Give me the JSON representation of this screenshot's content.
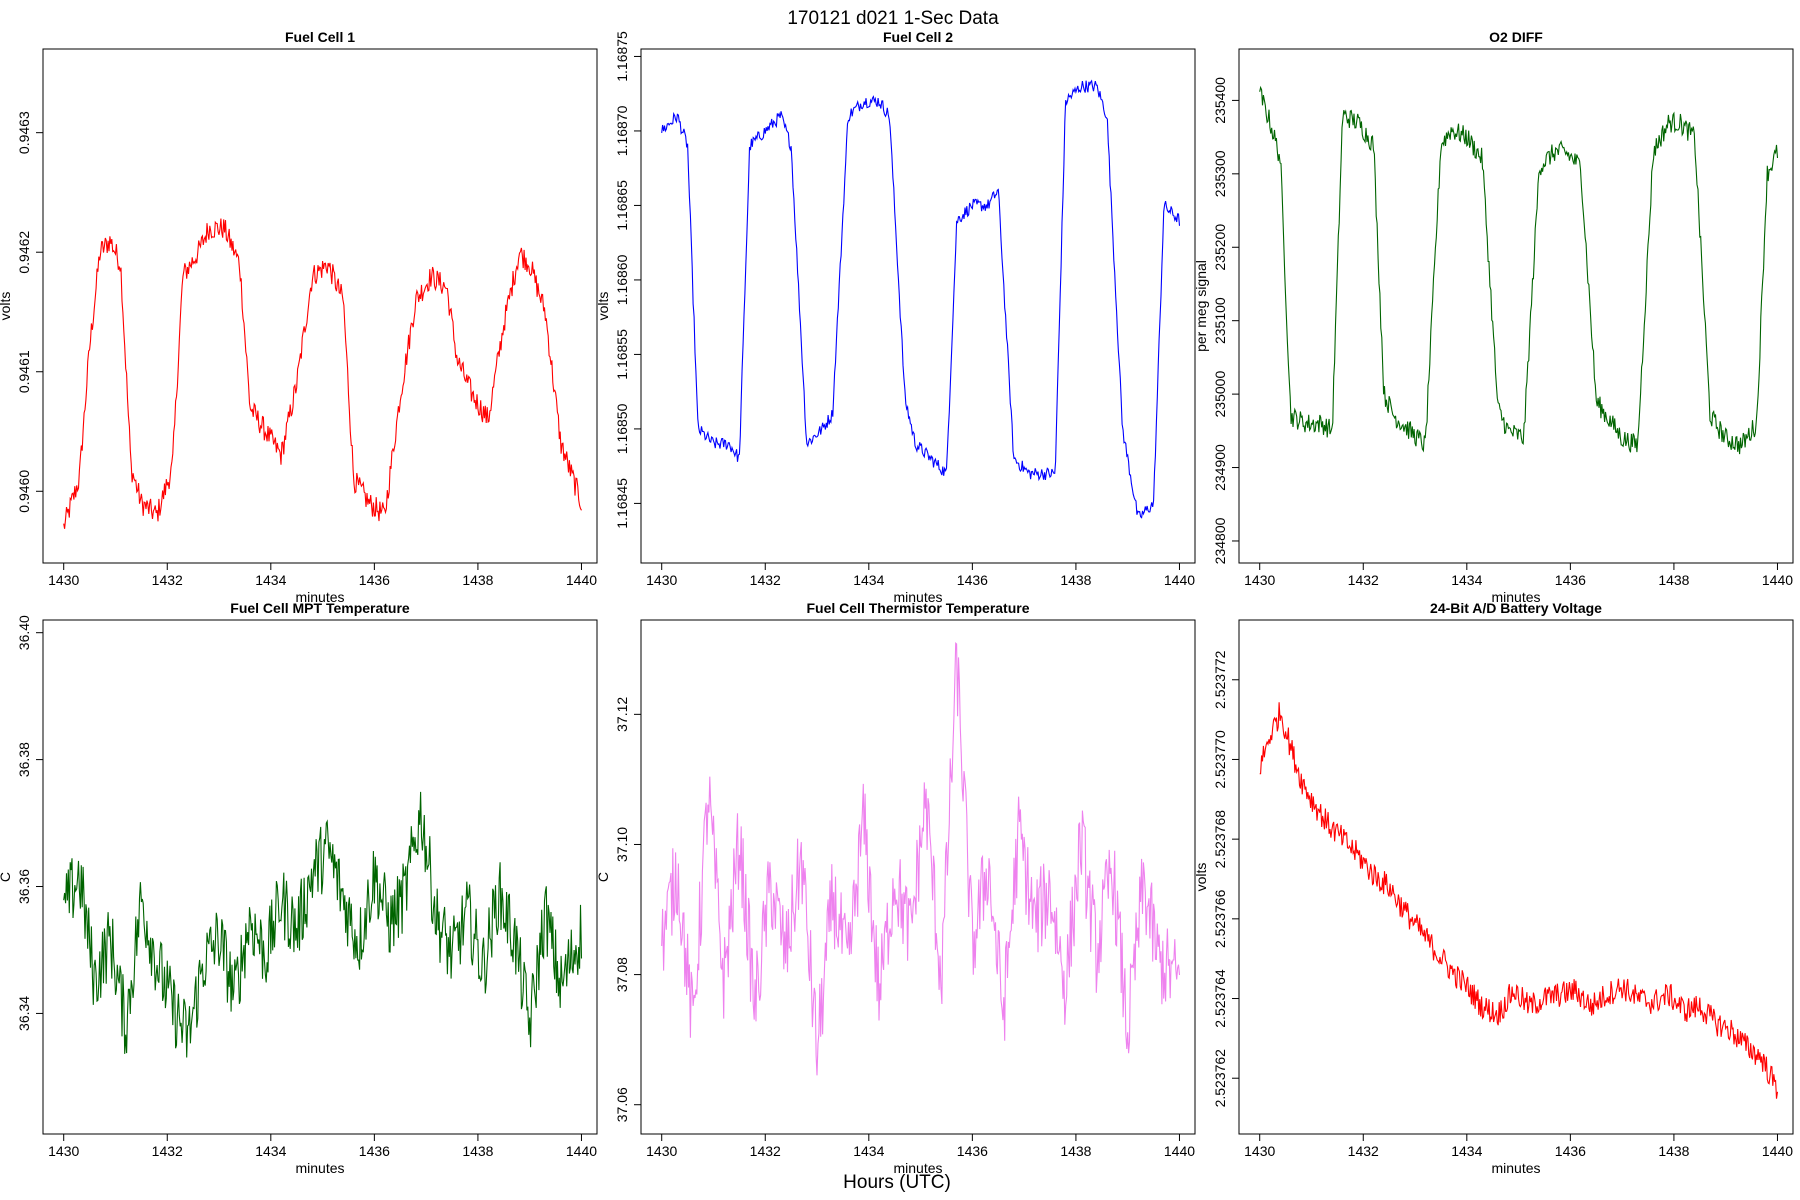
{
  "figure": {
    "title": "170121   d021   1-Sec Data",
    "xlabel_outer": "Hours (UTC)"
  },
  "chart_data": [
    {
      "type": "line",
      "title": "Fuel Cell 1",
      "xlabel": "minutes",
      "ylabel": "volts",
      "color": "#ff0000",
      "xlim": [
        1429.6,
        1440.3
      ],
      "ylim": [
        0.94594,
        0.94637
      ],
      "xticks": [
        1430,
        1432,
        1434,
        1436,
        1438,
        1440
      ],
      "yticks": [
        0.946,
        0.9461,
        0.9462,
        0.9463
      ],
      "ytick_labels": [
        "0.9460",
        "0.9461",
        "0.9462",
        "0.9463"
      ],
      "series": [
        {
          "name": "Fuel Cell 1",
          "x": [
            1430.0,
            1430.3,
            1430.5,
            1430.7,
            1430.9,
            1431.1,
            1431.3,
            1431.5,
            1431.8,
            1432.1,
            1432.3,
            1432.6,
            1432.8,
            1433.1,
            1433.4,
            1433.6,
            1433.9,
            1434.2,
            1434.5,
            1434.8,
            1435.1,
            1435.4,
            1435.6,
            1435.9,
            1436.2,
            1436.5,
            1436.8,
            1437.1,
            1437.4,
            1437.6,
            1437.9,
            1438.2,
            1438.5,
            1438.8,
            1439.0,
            1439.3,
            1439.6,
            1440.0
          ],
          "y": [
            0.94597,
            0.94601,
            0.94612,
            0.9462,
            0.94621,
            0.94619,
            0.94602,
            0.94599,
            0.94598,
            0.94602,
            0.94618,
            0.9462,
            0.94622,
            0.94622,
            0.94619,
            0.94607,
            0.94605,
            0.94603,
            0.94609,
            0.94618,
            0.94619,
            0.94616,
            0.94601,
            0.94599,
            0.94598,
            0.94608,
            0.94616,
            0.94618,
            0.94617,
            0.94611,
            0.94608,
            0.94606,
            0.94614,
            0.9462,
            0.94619,
            0.94615,
            0.94604,
            0.94599
          ]
        }
      ]
    },
    {
      "type": "line",
      "title": "Fuel Cell 2",
      "xlabel": "minutes",
      "ylabel": "volts",
      "color": "#0000ff",
      "xlim": [
        1429.6,
        1440.3
      ],
      "ylim": [
        1.16841,
        1.168755
      ],
      "xticks": [
        1430,
        1432,
        1434,
        1436,
        1438,
        1440
      ],
      "yticks": [
        1.16845,
        1.1685,
        1.16855,
        1.1686,
        1.16865,
        1.1687,
        1.16875
      ],
      "ytick_labels": [
        "1.16845",
        "1.16850",
        "1.16855",
        "1.16860",
        "1.16865",
        "1.16870",
        "1.16875"
      ],
      "series": [
        {
          "name": "Fuel Cell 2",
          "x": [
            1430.0,
            1430.3,
            1430.5,
            1430.7,
            1431.0,
            1431.3,
            1431.5,
            1431.7,
            1432.0,
            1432.3,
            1432.5,
            1432.8,
            1433.1,
            1433.3,
            1433.6,
            1433.9,
            1434.2,
            1434.4,
            1434.7,
            1434.9,
            1435.2,
            1435.5,
            1435.7,
            1436.0,
            1436.3,
            1436.5,
            1436.8,
            1437.1,
            1437.3,
            1437.6,
            1437.8,
            1438.1,
            1438.4,
            1438.6,
            1438.9,
            1439.2,
            1439.5,
            1439.7,
            1440.0
          ],
          "y": [
            1.1687,
            1.16871,
            1.16869,
            1.1685,
            1.16849,
            1.16849,
            1.16848,
            1.16869,
            1.1687,
            1.16871,
            1.16869,
            1.16849,
            1.1685,
            1.16851,
            1.16871,
            1.16872,
            1.16872,
            1.16871,
            1.16852,
            1.16849,
            1.16848,
            1.16847,
            1.16864,
            1.16865,
            1.16865,
            1.16866,
            1.16848,
            1.16847,
            1.16847,
            1.16847,
            1.16872,
            1.16873,
            1.16873,
            1.16871,
            1.1685,
            1.16844,
            1.16845,
            1.16865,
            1.16864
          ]
        }
      ]
    },
    {
      "type": "line",
      "title": "O2 DIFF",
      "xlabel": "minutes",
      "ylabel": "per meg signal",
      "color": "#006400",
      "xlim": [
        1429.6,
        1440.3
      ],
      "ylim": [
        234770,
        235470
      ],
      "xticks": [
        1430,
        1432,
        1434,
        1436,
        1438,
        1440
      ],
      "yticks": [
        234800,
        234900,
        235000,
        235100,
        235200,
        235300,
        235400
      ],
      "ytick_labels": [
        "234800",
        "234900",
        "235000",
        "235100",
        "235200",
        "235300",
        "235400"
      ],
      "series": [
        {
          "name": "O2 DIFF",
          "x": [
            1430.0,
            1430.2,
            1430.4,
            1430.6,
            1430.9,
            1431.2,
            1431.4,
            1431.6,
            1431.9,
            1432.2,
            1432.4,
            1432.6,
            1432.9,
            1433.2,
            1433.5,
            1433.7,
            1434.0,
            1434.3,
            1434.6,
            1434.8,
            1435.1,
            1435.4,
            1435.7,
            1435.9,
            1436.2,
            1436.5,
            1436.8,
            1437.0,
            1437.3,
            1437.6,
            1437.9,
            1438.1,
            1438.4,
            1438.7,
            1439.0,
            1439.3,
            1439.6,
            1439.8,
            1440.0
          ],
          "y": [
            235410,
            235370,
            235320,
            234970,
            234960,
            234960,
            234950,
            235380,
            235370,
            235340,
            235000,
            234970,
            234950,
            234930,
            235340,
            235360,
            235350,
            235320,
            234980,
            234950,
            234940,
            235310,
            235330,
            235330,
            235310,
            234990,
            234960,
            234940,
            234930,
            235330,
            235370,
            235370,
            235350,
            234970,
            234940,
            234930,
            234960,
            235300,
            235330
          ]
        }
      ]
    },
    {
      "type": "line",
      "title": "Fuel Cell MPT Temperature",
      "xlabel": "minutes",
      "ylabel": "C",
      "color": "#006400",
      "xlim": [
        1429.6,
        1440.3
      ],
      "ylim": [
        36.321,
        36.402
      ],
      "xticks": [
        1430,
        1432,
        1434,
        1436,
        1438,
        1440
      ],
      "yticks": [
        36.34,
        36.36,
        36.38,
        36.4
      ],
      "ytick_labels": [
        "36.34",
        "36.36",
        "36.38",
        "36.40"
      ],
      "series": [
        {
          "name": "Fuel Cell MPT Temperature",
          "x": [
            1430.0,
            1430.3,
            1430.6,
            1430.9,
            1431.2,
            1431.5,
            1431.8,
            1432.1,
            1432.4,
            1432.7,
            1433.0,
            1433.3,
            1433.6,
            1433.9,
            1434.2,
            1434.5,
            1434.8,
            1435.1,
            1435.4,
            1435.7,
            1436.0,
            1436.3,
            1436.6,
            1436.9,
            1437.2,
            1437.5,
            1437.8,
            1438.1,
            1438.4,
            1438.7,
            1439.0,
            1439.3,
            1439.6,
            1440.0
          ],
          "y": [
            36.356,
            36.362,
            36.345,
            36.352,
            36.338,
            36.358,
            36.348,
            36.341,
            36.336,
            36.348,
            36.352,
            36.343,
            36.355,
            36.349,
            36.358,
            36.353,
            36.362,
            36.366,
            36.358,
            36.351,
            36.362,
            36.354,
            36.359,
            36.372,
            36.355,
            36.349,
            36.356,
            36.347,
            36.359,
            36.352,
            36.338,
            36.356,
            36.344,
            36.353
          ]
        }
      ]
    },
    {
      "type": "line",
      "title": "Fuel Cell Thermistor Temperature",
      "xlabel": "minutes",
      "ylabel": "C",
      "color": "#ee82ee",
      "xlim": [
        1429.6,
        1440.3
      ],
      "ylim": [
        37.0555,
        37.1345
      ],
      "xticks": [
        1430,
        1432,
        1434,
        1436,
        1438,
        1440
      ],
      "yticks": [
        37.06,
        37.08,
        37.1,
        37.12
      ],
      "ytick_labels": [
        "37.06",
        "37.08",
        "37.10",
        "37.12"
      ],
      "series": [
        {
          "name": "Fuel Cell Thermistor Temperature",
          "x": [
            1430.0,
            1430.3,
            1430.6,
            1430.9,
            1431.2,
            1431.5,
            1431.8,
            1432.1,
            1432.4,
            1432.7,
            1433.0,
            1433.3,
            1433.6,
            1433.9,
            1434.2,
            1434.5,
            1434.8,
            1435.1,
            1435.4,
            1435.7,
            1436.0,
            1436.3,
            1436.6,
            1436.9,
            1437.2,
            1437.5,
            1437.8,
            1438.1,
            1438.4,
            1438.7,
            1439.0,
            1439.3,
            1439.6,
            1440.0
          ],
          "y": [
            37.085,
            37.096,
            37.072,
            37.108,
            37.079,
            37.101,
            37.075,
            37.094,
            37.083,
            37.098,
            37.068,
            37.092,
            37.081,
            37.104,
            37.077,
            37.095,
            37.086,
            37.107,
            37.079,
            37.128,
            37.084,
            37.097,
            37.074,
            37.102,
            37.088,
            37.093,
            37.078,
            37.101,
            37.083,
            37.097,
            37.071,
            37.094,
            37.082,
            37.079
          ]
        }
      ]
    },
    {
      "type": "line",
      "title": "24-Bit A/D Battery Voltage",
      "xlabel": "minutes",
      "ylabel": "volts",
      "color": "#ff0000",
      "xlim": [
        1429.6,
        1440.3
      ],
      "ylim": [
        2.5237606,
        2.5237735
      ],
      "xticks": [
        1430,
        1432,
        1434,
        1436,
        1438,
        1440
      ],
      "yticks": [
        2.523762,
        2.523764,
        2.523766,
        2.523768,
        2.52377,
        2.523772
      ],
      "ytick_labels": [
        "2.523762",
        "2.523764",
        "2.523766",
        "2.523768",
        "2.523770",
        "2.523772"
      ],
      "series": [
        {
          "name": "24-Bit A/D Battery Voltage",
          "x": [
            1430.0,
            1430.2,
            1430.4,
            1430.6,
            1430.8,
            1431.0,
            1431.3,
            1431.6,
            1431.9,
            1432.2,
            1432.5,
            1432.8,
            1433.1,
            1433.4,
            1433.7,
            1434.0,
            1434.3,
            1434.6,
            1434.9,
            1435.2,
            1435.5,
            1435.8,
            1436.1,
            1436.4,
            1436.7,
            1437.0,
            1437.3,
            1437.6,
            1437.9,
            1438.2,
            1438.5,
            1438.8,
            1439.1,
            1439.4,
            1439.7,
            1440.0
          ],
          "y": [
            2.5237698,
            2.5237706,
            2.5237712,
            2.5237703,
            2.5237695,
            2.523769,
            2.5237684,
            2.523768,
            2.5237676,
            2.5237671,
            2.5237668,
            2.5237662,
            2.5237657,
            2.5237652,
            2.5237647,
            2.5237643,
            2.5237638,
            2.5237636,
            2.5237642,
            2.5237638,
            2.523764,
            2.5237641,
            2.5237642,
            2.5237638,
            2.5237641,
            2.5237643,
            2.523764,
            2.5237639,
            2.5237641,
            2.5237637,
            2.5237638,
            2.5237634,
            2.5237632,
            2.5237628,
            2.5237625,
            2.5237617
          ]
        }
      ]
    }
  ]
}
